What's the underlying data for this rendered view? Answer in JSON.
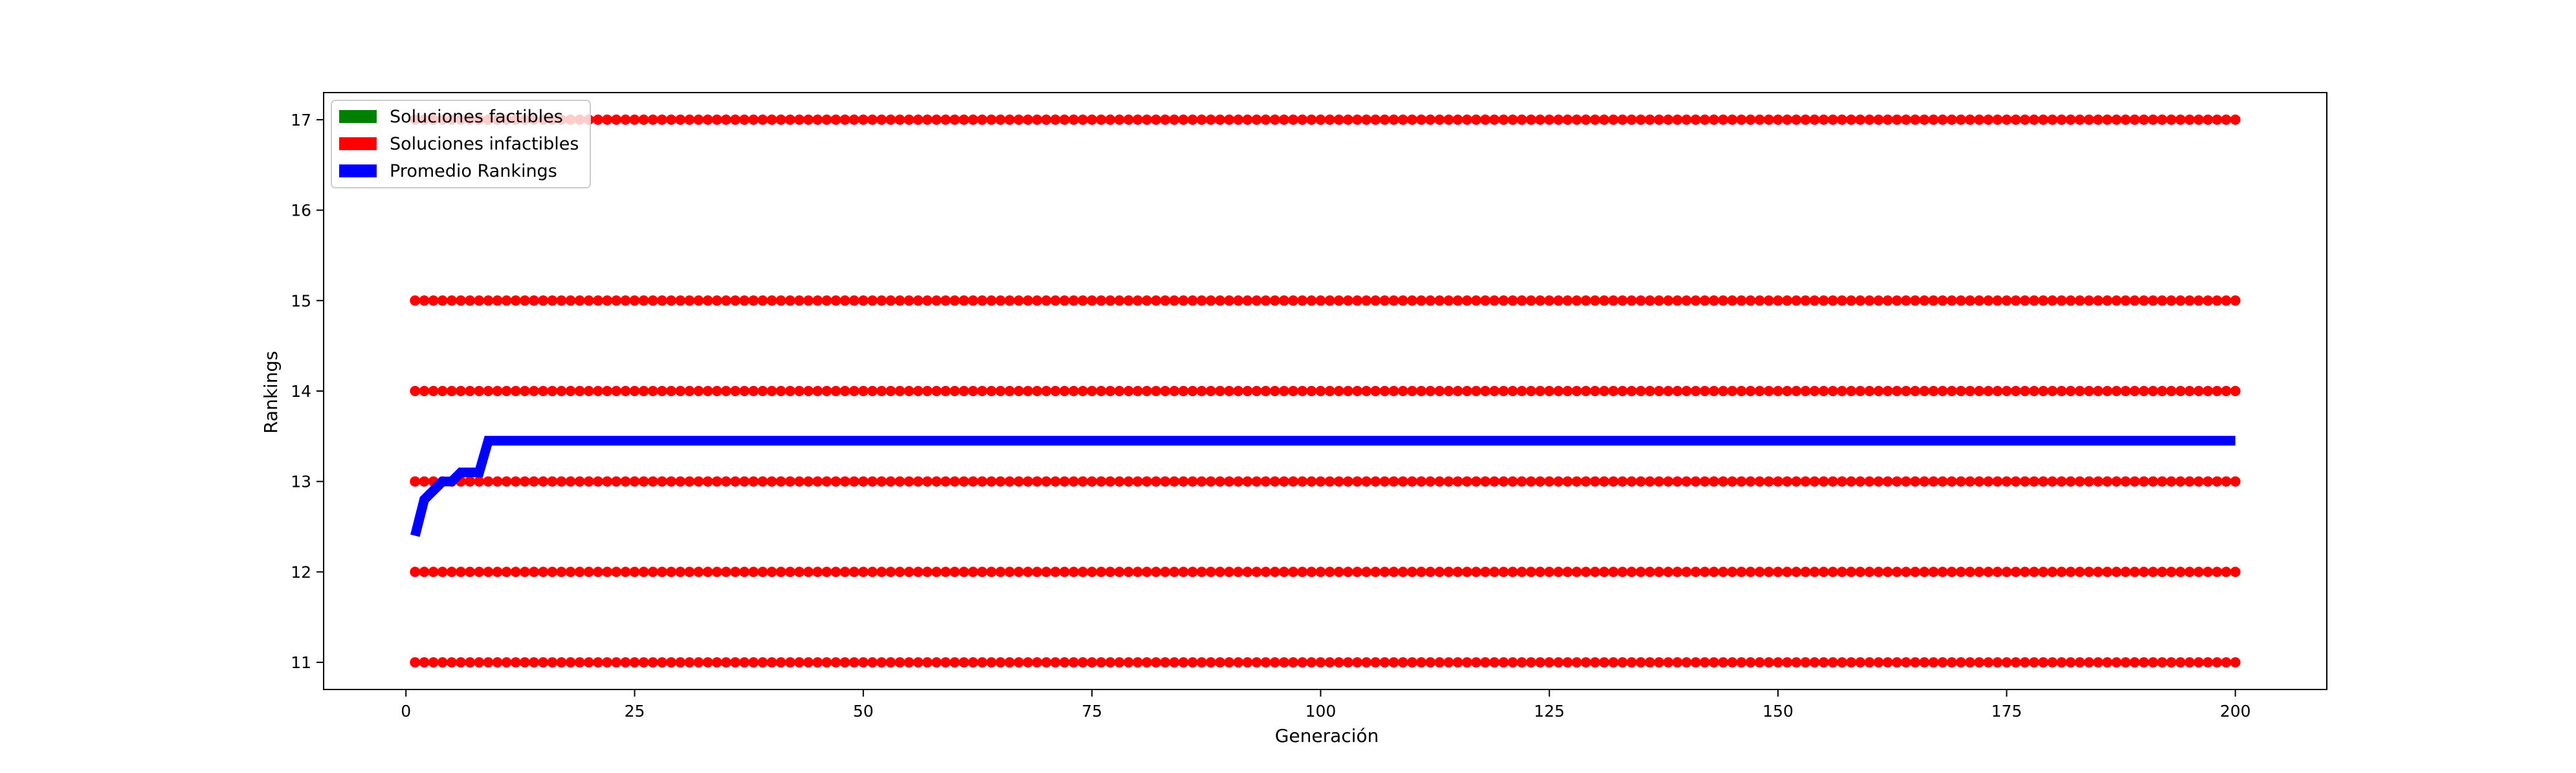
{
  "chart_data": {
    "type": "scatter",
    "title": "",
    "xlabel": "Generación",
    "ylabel": "Rankings",
    "xlim": [
      -9,
      210
    ],
    "ylim": [
      10.7,
      17.3
    ],
    "xticks": [
      0,
      25,
      50,
      75,
      100,
      125,
      150,
      175,
      200
    ],
    "yticks": [
      11,
      12,
      13,
      14,
      15,
      16,
      17
    ],
    "grid": false,
    "legend_placement": "upper-left",
    "colors": {
      "factibles": "#008000",
      "infactibles": "#ff0000",
      "promedio": "#0000ff"
    },
    "legend": [
      {
        "label": "Soluciones factibles",
        "color": "#008000"
      },
      {
        "label": "Soluciones infactibles",
        "color": "#ff0000"
      },
      {
        "label": "Promedio Rankings",
        "color": "#0000ff"
      }
    ],
    "series": [
      {
        "name": "Soluciones infactibles",
        "kind": "scatter",
        "x_range": [
          1,
          200
        ],
        "x_step": 1,
        "y_levels": [
          11,
          12,
          13,
          14,
          15,
          17
        ]
      },
      {
        "name": "Promedio Rankings",
        "kind": "line",
        "x": [
          1,
          2,
          3,
          4,
          5,
          6,
          7,
          8,
          9,
          10,
          200
        ],
        "y": [
          12.4,
          12.8,
          12.9,
          13.0,
          13.0,
          13.1,
          13.1,
          13.1,
          13.45,
          13.45,
          13.45
        ]
      }
    ]
  }
}
